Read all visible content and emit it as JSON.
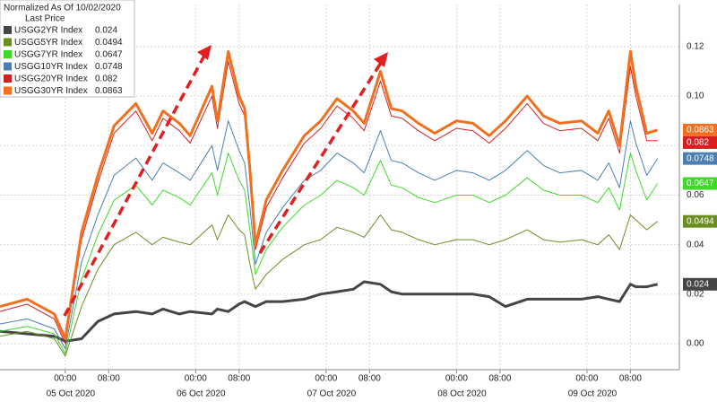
{
  "chart_data": {
    "type": "line",
    "legend_title": "Normalized As Of 10/02/2020",
    "legend_subtitle": "Last Price",
    "legend_position": "upper left",
    "grid": true,
    "x": [
      -12,
      -7,
      -2,
      0,
      3,
      6,
      9,
      13,
      16,
      18,
      21,
      23,
      27,
      28,
      30,
      32,
      33,
      34,
      35,
      37,
      40,
      44,
      47,
      50,
      53,
      55,
      58,
      60,
      62,
      65,
      68,
      72,
      75,
      78,
      81,
      85,
      88,
      91,
      95,
      98,
      100,
      102,
      104,
      105,
      107,
      109
    ],
    "xlim": [
      -12,
      113
    ],
    "xticks": [
      {
        "value": 0,
        "label": "00:00"
      },
      {
        "value": 8,
        "label": "08:00"
      },
      {
        "value": 24,
        "label": "00:00"
      },
      {
        "value": 32,
        "label": "08:00"
      },
      {
        "value": 48,
        "label": "00:00"
      },
      {
        "value": 56,
        "label": "08:00"
      },
      {
        "value": 72,
        "label": "00:00"
      },
      {
        "value": 80,
        "label": "08:00"
      },
      {
        "value": 96,
        "label": "00:00"
      },
      {
        "value": 104,
        "label": "08:00"
      }
    ],
    "x_date_labels": [
      {
        "value": 1,
        "label": "05 Oct 2020"
      },
      {
        "value": 25,
        "label": "06 Oct 2020"
      },
      {
        "value": 49,
        "label": "07 Oct 2020"
      },
      {
        "value": 73,
        "label": "08 Oct 2020"
      },
      {
        "value": 97,
        "label": "09 Oct 2020"
      }
    ],
    "ylim": [
      -0.0105,
      0.137
    ],
    "yticks": [
      {
        "value": 0,
        "label": "0.00"
      },
      0.02,
      0.04,
      0.06,
      0.08,
      {
        "value": 0.1,
        "label": "0.10"
      },
      0.12
    ],
    "series": [
      {
        "name": "USGG2YR Index",
        "color": "#454545",
        "width": 3,
        "values": [
          0.005,
          0.004,
          0.003,
          0.001,
          0.002,
          0.009,
          0.012,
          0.013,
          0.012,
          0.014,
          0.012,
          0.013,
          0.012,
          0.014,
          0.013,
          0.016,
          0.017,
          0.016,
          0.015,
          0.017,
          0.017,
          0.018,
          0.02,
          0.021,
          0.022,
          0.025,
          0.024,
          0.021,
          0.02,
          0.02,
          0.02,
          0.02,
          0.02,
          0.019,
          0.015,
          0.018,
          0.018,
          0.018,
          0.018,
          0.019,
          0.018,
          0.017,
          0.024,
          0.023,
          0.023,
          0.024
        ]
      },
      {
        "name": "USGG5YR Index",
        "color": "#6b8e23",
        "width": 1,
        "values": [
          0.003,
          0.005,
          0.002,
          -0.005,
          0.015,
          0.03,
          0.04,
          0.045,
          0.04,
          0.043,
          0.041,
          0.04,
          0.048,
          0.042,
          0.052,
          0.046,
          0.044,
          0.032,
          0.022,
          0.028,
          0.034,
          0.04,
          0.042,
          0.047,
          0.045,
          0.043,
          0.052,
          0.046,
          0.045,
          0.042,
          0.04,
          0.042,
          0.042,
          0.04,
          0.042,
          0.046,
          0.042,
          0.041,
          0.042,
          0.04,
          0.044,
          0.038,
          0.052,
          0.05,
          0.046,
          0.0494
        ]
      },
      {
        "name": "USGG7YR Index",
        "color": "#3fd92a",
        "width": 1,
        "values": [
          0.005,
          0.007,
          0.004,
          -0.004,
          0.026,
          0.044,
          0.058,
          0.064,
          0.056,
          0.062,
          0.059,
          0.056,
          0.069,
          0.06,
          0.077,
          0.066,
          0.062,
          0.046,
          0.028,
          0.038,
          0.047,
          0.056,
          0.06,
          0.066,
          0.063,
          0.06,
          0.074,
          0.064,
          0.063,
          0.059,
          0.057,
          0.06,
          0.06,
          0.057,
          0.06,
          0.067,
          0.062,
          0.06,
          0.06,
          0.057,
          0.063,
          0.054,
          0.077,
          0.07,
          0.058,
          0.0647
        ]
      },
      {
        "name": "USGG10YR Index",
        "color": "#4a7fb0",
        "width": 1,
        "values": [
          0.008,
          0.01,
          0.006,
          -0.002,
          0.033,
          0.052,
          0.068,
          0.075,
          0.066,
          0.073,
          0.069,
          0.066,
          0.08,
          0.07,
          0.09,
          0.078,
          0.073,
          0.055,
          0.032,
          0.045,
          0.055,
          0.066,
          0.07,
          0.077,
          0.073,
          0.069,
          0.086,
          0.074,
          0.073,
          0.069,
          0.066,
          0.07,
          0.069,
          0.066,
          0.07,
          0.078,
          0.072,
          0.069,
          0.07,
          0.066,
          0.073,
          0.063,
          0.09,
          0.081,
          0.068,
          0.0748
        ]
      },
      {
        "name": "USGG20YR Index",
        "color": "#d42020",
        "width": 1,
        "values": [
          0.013,
          0.016,
          0.01,
          0.0,
          0.042,
          0.065,
          0.085,
          0.094,
          0.082,
          0.091,
          0.086,
          0.081,
          0.1,
          0.087,
          0.114,
          0.097,
          0.092,
          0.067,
          0.038,
          0.055,
          0.067,
          0.081,
          0.087,
          0.096,
          0.091,
          0.086,
          0.106,
          0.092,
          0.091,
          0.086,
          0.082,
          0.087,
          0.086,
          0.081,
          0.087,
          0.097,
          0.089,
          0.086,
          0.087,
          0.082,
          0.091,
          0.077,
          0.112,
          0.1,
          0.082,
          0.082
        ]
      },
      {
        "name": "USGG30YR Index",
        "color": "#f07020",
        "width": 3,
        "values": [
          0.015,
          0.018,
          0.012,
          0.002,
          0.045,
          0.068,
          0.088,
          0.097,
          0.085,
          0.094,
          0.089,
          0.084,
          0.104,
          0.09,
          0.118,
          0.1,
          0.095,
          0.07,
          0.04,
          0.058,
          0.07,
          0.084,
          0.09,
          0.099,
          0.094,
          0.089,
          0.11,
          0.095,
          0.094,
          0.089,
          0.085,
          0.09,
          0.089,
          0.084,
          0.09,
          0.1,
          0.092,
          0.089,
          0.09,
          0.085,
          0.094,
          0.08,
          0.118,
          0.104,
          0.085,
          0.0863
        ]
      }
    ]
  }
}
